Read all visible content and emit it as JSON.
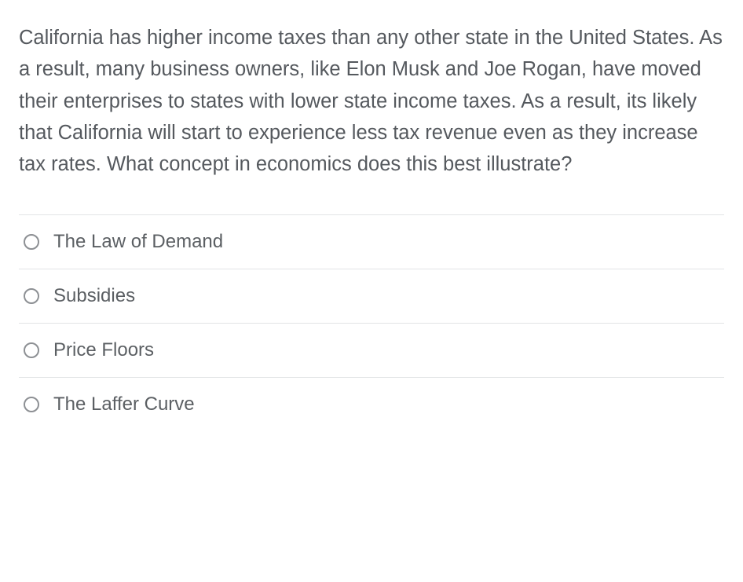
{
  "question": {
    "text": "California has higher income taxes than any other state in the United States.  As a result, many business owners, like Elon Musk and Joe Rogan, have moved their enterprises to states with lower state income taxes.  As a result, its likely that California will start to experience less tax revenue even as they increase tax rates.  What concept in economics does this best illustrate?",
    "text_color": "#55595e",
    "font_size_pt": 19,
    "line_height": 1.58
  },
  "options": [
    {
      "label": "The Law of Demand",
      "selected": false
    },
    {
      "label": "Subsidies",
      "selected": false
    },
    {
      "label": "Price Floors",
      "selected": false
    },
    {
      "label": "The Laffer Curve",
      "selected": false
    }
  ],
  "styling": {
    "background_color": "#ffffff",
    "divider_color": "#e2e4e6",
    "radio_border_color": "#8d9094",
    "option_text_color": "#5b5f63",
    "option_font_size_pt": 18
  }
}
